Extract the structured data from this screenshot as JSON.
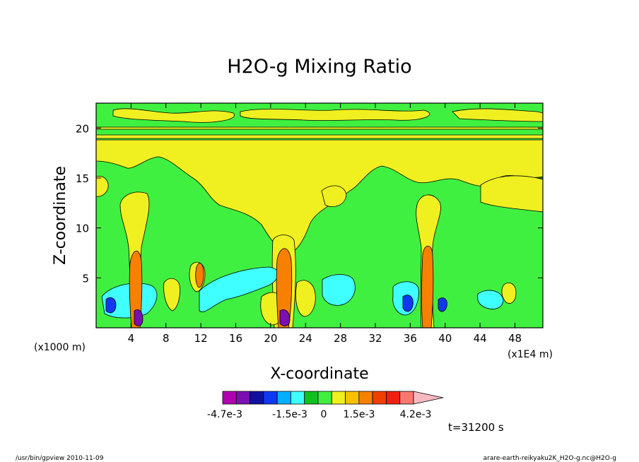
{
  "chart_data": {
    "type": "heatmap",
    "title": "H2O-g Mixing Ratio",
    "xlabel": "X-coordinate",
    "ylabel": "Z-coordinate",
    "x_unit_left": "(x1000 m)",
    "x_unit_right": "(x1E4 m)",
    "x_ticks": [
      "4",
      "8",
      "12",
      "16",
      "20",
      "24",
      "28",
      "32",
      "36",
      "40",
      "44",
      "48"
    ],
    "x_tick_values": [
      4,
      8,
      12,
      16,
      20,
      24,
      28,
      32,
      36,
      40,
      44,
      48
    ],
    "xlim": [
      0,
      51.2
    ],
    "y_ticks": [
      "5",
      "10",
      "15",
      "20"
    ],
    "y_tick_values": [
      5,
      10,
      15,
      20
    ],
    "ylim": [
      0,
      22.5
    ],
    "colorbar": {
      "colors": [
        "#b000b0",
        "#7a10b0",
        "#1010a0",
        "#1038f0",
        "#00b0ff",
        "#40ffff",
        "#10c020",
        "#40f040",
        "#f0f020",
        "#f8c000",
        "#f88000",
        "#f04000",
        "#f02010",
        "#f87870",
        "#f8b8c0"
      ],
      "labels": [
        "-4.7e-3",
        "-1.5e-3",
        "0",
        "1.5e-3",
        "4.2e-3"
      ]
    },
    "time_label": "t=31200 s",
    "footer_left": "/usr/bin/gpview   2010-11-09",
    "footer_right": "arare-earth-reikyaku2K_H2O-g.nc@H2O-g"
  }
}
